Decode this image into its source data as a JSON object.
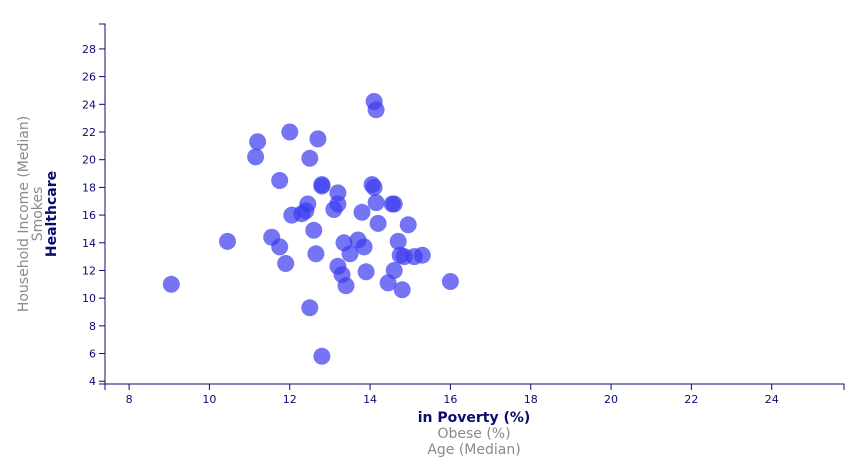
{
  "chart_data": {
    "type": "scatter",
    "x_axis": {
      "range": [
        7.4,
        25.8
      ],
      "ticks": [
        8,
        10,
        12,
        14,
        16,
        18,
        20,
        22,
        24
      ],
      "labels": [
        {
          "text": "in Poverty (%)",
          "active": true
        },
        {
          "text": "Obese (%)",
          "active": false
        },
        {
          "text": "Age (Median)",
          "active": false
        }
      ]
    },
    "y_axis": {
      "range": [
        3.8,
        29.8
      ],
      "ticks": [
        4,
        6,
        8,
        10,
        12,
        14,
        16,
        18,
        20,
        22,
        24,
        26,
        28
      ],
      "labels": [
        {
          "text": "Healthcare",
          "active": true
        },
        {
          "text": "Smokes",
          "active": false
        },
        {
          "text": "Household Income (Median)",
          "active": false
        }
      ]
    },
    "point_color": "#3b3bf0",
    "points": [
      {
        "x": 9.05,
        "y": 11.0
      },
      {
        "x": 10.45,
        "y": 14.1
      },
      {
        "x": 11.15,
        "y": 20.2
      },
      {
        "x": 11.2,
        "y": 21.3
      },
      {
        "x": 11.55,
        "y": 14.4
      },
      {
        "x": 11.75,
        "y": 13.7
      },
      {
        "x": 11.75,
        "y": 18.5
      },
      {
        "x": 11.9,
        "y": 12.5
      },
      {
        "x": 12.0,
        "y": 22.0
      },
      {
        "x": 12.05,
        "y": 16.0
      },
      {
        "x": 12.3,
        "y": 16.1
      },
      {
        "x": 12.4,
        "y": 16.3
      },
      {
        "x": 12.45,
        "y": 16.8
      },
      {
        "x": 12.5,
        "y": 9.3
      },
      {
        "x": 12.5,
        "y": 20.1
      },
      {
        "x": 12.6,
        "y": 14.9
      },
      {
        "x": 12.65,
        "y": 13.2
      },
      {
        "x": 12.7,
        "y": 21.5
      },
      {
        "x": 12.8,
        "y": 18.1
      },
      {
        "x": 12.8,
        "y": 18.2
      },
      {
        "x": 12.8,
        "y": 5.8
      },
      {
        "x": 13.1,
        "y": 16.4
      },
      {
        "x": 13.2,
        "y": 16.8
      },
      {
        "x": 13.2,
        "y": 17.6
      },
      {
        "x": 13.2,
        "y": 12.3
      },
      {
        "x": 13.3,
        "y": 11.7
      },
      {
        "x": 13.35,
        "y": 14.0
      },
      {
        "x": 13.4,
        "y": 10.9
      },
      {
        "x": 13.5,
        "y": 13.2
      },
      {
        "x": 13.7,
        "y": 14.2
      },
      {
        "x": 13.8,
        "y": 16.2
      },
      {
        "x": 13.85,
        "y": 13.7
      },
      {
        "x": 13.9,
        "y": 11.9
      },
      {
        "x": 14.05,
        "y": 18.2
      },
      {
        "x": 14.1,
        "y": 18.0
      },
      {
        "x": 14.1,
        "y": 24.2
      },
      {
        "x": 14.15,
        "y": 16.9
      },
      {
        "x": 14.15,
        "y": 23.6
      },
      {
        "x": 14.2,
        "y": 15.4
      },
      {
        "x": 14.45,
        "y": 11.1
      },
      {
        "x": 14.55,
        "y": 16.8
      },
      {
        "x": 14.6,
        "y": 16.8
      },
      {
        "x": 14.6,
        "y": 12.0
      },
      {
        "x": 14.7,
        "y": 14.1
      },
      {
        "x": 14.75,
        "y": 13.1
      },
      {
        "x": 14.8,
        "y": 10.6
      },
      {
        "x": 14.85,
        "y": 13.0
      },
      {
        "x": 14.95,
        "y": 15.3
      },
      {
        "x": 15.1,
        "y": 13.0
      },
      {
        "x": 15.3,
        "y": 13.1
      },
      {
        "x": 16.0,
        "y": 11.2
      }
    ]
  }
}
